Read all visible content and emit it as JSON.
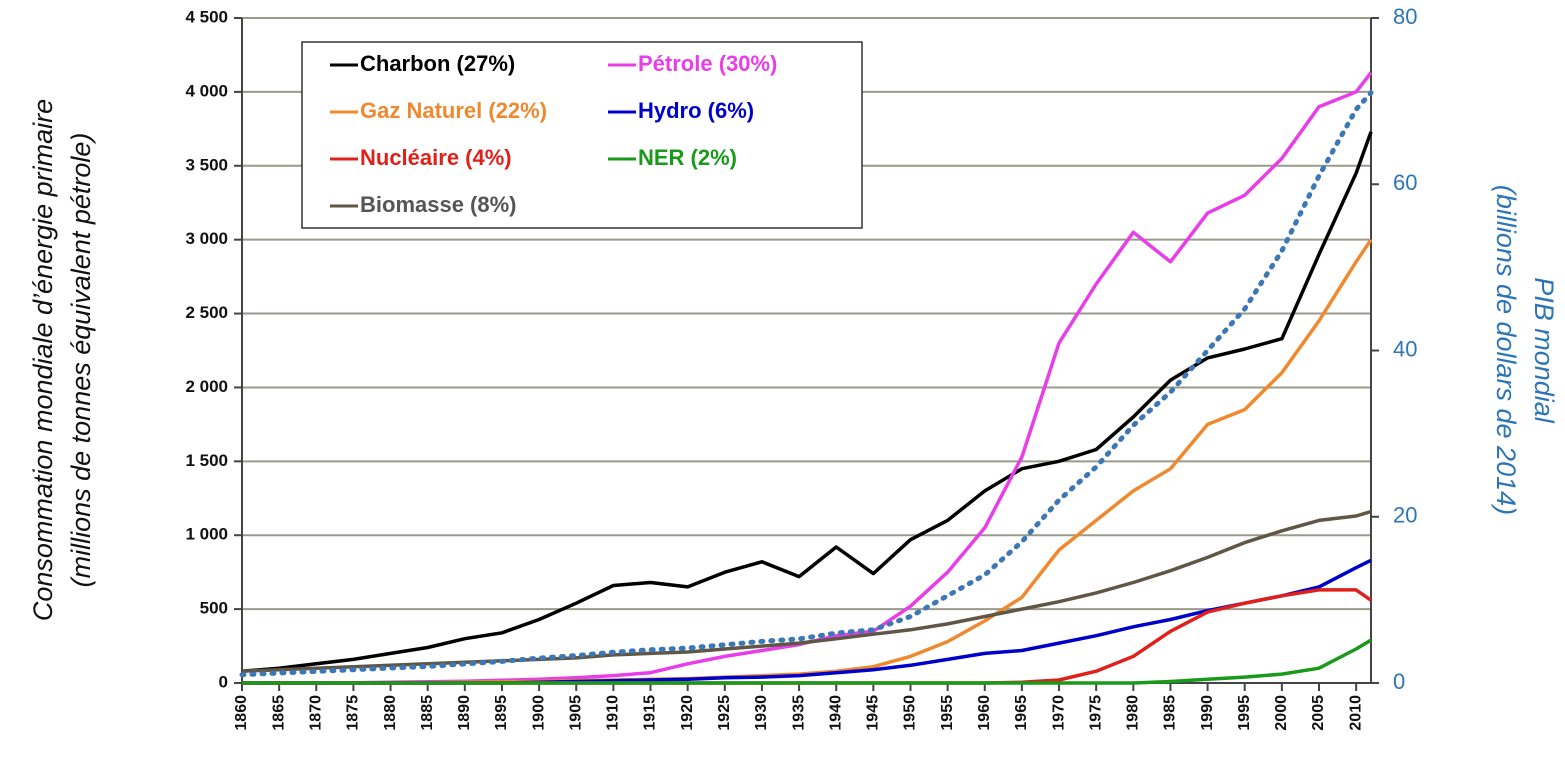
{
  "chart_data": {
    "type": "line",
    "y_label": [
      "Consommation mondiale d’énergie primaire",
      "(millions de tonnes équivalent pétrole)"
    ],
    "y2_label": [
      "PIB mondial",
      "(billions de dollars de 2014)"
    ],
    "x": [
      1860,
      1865,
      1870,
      1875,
      1880,
      1885,
      1890,
      1895,
      1900,
      1905,
      1910,
      1915,
      1920,
      1925,
      1930,
      1935,
      1940,
      1945,
      1950,
      1955,
      1960,
      1965,
      1970,
      1975,
      1980,
      1985,
      1990,
      1995,
      2000,
      2005,
      2010,
      2012
    ],
    "xlim": [
      1860,
      2012
    ],
    "xticks": [
      1860,
      1865,
      1870,
      1875,
      1880,
      1885,
      1890,
      1895,
      1900,
      1905,
      1910,
      1915,
      1920,
      1925,
      1930,
      1935,
      1940,
      1945,
      1950,
      1955,
      1960,
      1965,
      1970,
      1975,
      1980,
      1985,
      1990,
      1995,
      2000,
      2005,
      2010
    ],
    "ylim": [
      0,
      4500
    ],
    "yticks": [
      0,
      500,
      {
        "value": 1000,
        "label": "1 000"
      },
      {
        "value": 1500,
        "label": "1 500"
      },
      {
        "value": 2000,
        "label": "2 000"
      },
      {
        "value": 2500,
        "label": "2 500"
      },
      {
        "value": 3000,
        "label": "3 000"
      },
      {
        "value": 3500,
        "label": "3 500"
      },
      {
        "value": 4000,
        "label": "4 000"
      },
      {
        "value": 4500,
        "label": "4 500"
      }
    ],
    "y2lim": [
      0,
      80
    ],
    "y2ticks": [
      0,
      20,
      40,
      60,
      80
    ],
    "grid": true,
    "legend": "top-left",
    "series": [
      {
        "name": "Charbon (27%)",
        "color": "#000000",
        "values": [
          80,
          100,
          130,
          160,
          200,
          240,
          300,
          340,
          430,
          540,
          660,
          680,
          650,
          750,
          820,
          720,
          920,
          740,
          970,
          1100,
          1300,
          1450,
          1500,
          1580,
          1800,
          2050,
          2200,
          2260,
          2330,
          2900,
          3450,
          3730
        ]
      },
      {
        "name": "Pétrole (30%)",
        "color": "#e83de8",
        "values": [
          0,
          0,
          0,
          2,
          5,
          8,
          12,
          18,
          25,
          35,
          50,
          70,
          130,
          180,
          220,
          260,
          320,
          350,
          520,
          750,
          1050,
          1530,
          2300,
          2700,
          3050,
          2850,
          3180,
          3300,
          3550,
          3900,
          4000,
          4130
        ]
      },
      {
        "name": "Gaz Naturel (22%)",
        "color": "#f0892e",
        "values": [
          0,
          0,
          0,
          0,
          0,
          2,
          5,
          8,
          10,
          15,
          20,
          25,
          30,
          40,
          50,
          60,
          80,
          110,
          180,
          280,
          420,
          580,
          900,
          1100,
          1300,
          1450,
          1750,
          1850,
          2100,
          2450,
          2850,
          3000
        ]
      },
      {
        "name": "Hydro (6%)",
        "color": "#0000cc",
        "values": [
          0,
          0,
          0,
          0,
          0,
          0,
          0,
          0,
          5,
          10,
          15,
          20,
          25,
          35,
          40,
          50,
          70,
          90,
          120,
          160,
          200,
          220,
          270,
          320,
          380,
          430,
          490,
          540,
          590,
          650,
          780,
          830
        ]
      },
      {
        "name": "Nucléaire (4%)",
        "color": "#e0201b",
        "values": [
          0,
          0,
          0,
          0,
          0,
          0,
          0,
          0,
          0,
          0,
          0,
          0,
          0,
          0,
          0,
          0,
          0,
          0,
          0,
          0,
          0,
          5,
          20,
          80,
          180,
          350,
          480,
          540,
          590,
          630,
          630,
          560
        ]
      },
      {
        "name": "NER (2%)",
        "color": "#1a9a1a",
        "values": [
          0,
          0,
          0,
          0,
          0,
          0,
          0,
          0,
          0,
          0,
          0,
          0,
          0,
          0,
          0,
          0,
          0,
          0,
          0,
          0,
          0,
          0,
          0,
          0,
          0,
          10,
          25,
          40,
          60,
          100,
          230,
          290
        ]
      },
      {
        "name": "Biomasse (8%)",
        "color": "#5f5646",
        "values": [
          80,
          90,
          100,
          110,
          120,
          130,
          140,
          150,
          160,
          170,
          190,
          200,
          210,
          230,
          250,
          270,
          300,
          330,
          360,
          400,
          450,
          500,
          550,
          610,
          680,
          760,
          850,
          950,
          1030,
          1100,
          1130,
          1160
        ]
      },
      {
        "color": "#3c78b5",
        "axis": "y2",
        "dashed": true,
        "values": [
          1,
          1.2,
          1.4,
          1.6,
          1.8,
          2,
          2.3,
          2.6,
          3,
          3.3,
          3.7,
          4,
          4.2,
          4.6,
          5,
          5.3,
          6,
          6.4,
          8,
          10.5,
          13,
          17,
          22,
          26,
          31,
          35,
          40,
          45,
          52,
          61,
          69,
          71
        ]
      }
    ]
  }
}
